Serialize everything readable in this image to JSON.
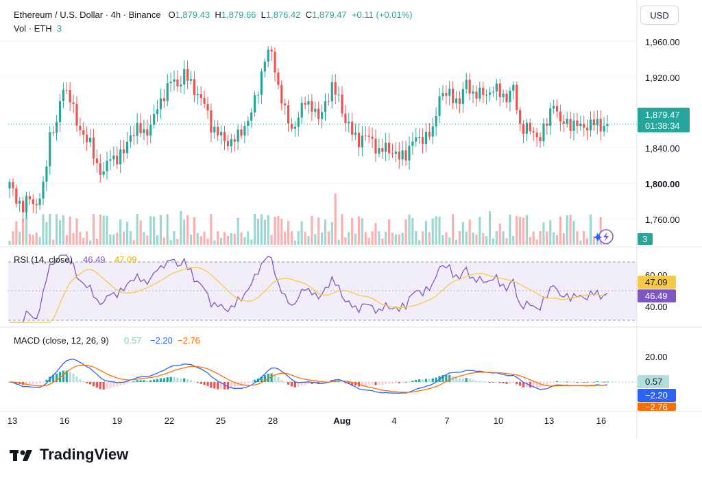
{
  "header": {
    "symbol": "Ethereum / U.S. Dollar · 4h · Binance",
    "o_label": "O",
    "o": "1,879.43",
    "h_label": "H",
    "h": "1,879.66",
    "l_label": "L",
    "l": "1,876.42",
    "c_label": "C",
    "c": "1,879.47",
    "change": "+0.11 (+0.01%)",
    "vol_label": "Vol · ETH",
    "vol_value": "3"
  },
  "currency_button": "USD",
  "colors": {
    "up": "#26a69a",
    "down": "#ef5350",
    "rsi": "#7e57c2",
    "rsi_ma": "#f7c948",
    "macd": "#2962ff",
    "signal": "#ff6d00",
    "grid": "#f0f3fa"
  },
  "brand": {
    "name": "TradingView"
  },
  "chart_data": [
    {
      "type": "candlestick",
      "title": "Ethereum / U.S. Dollar · 4h · Binance",
      "price_axis": {
        "ticks": [
          "1,960.00",
          "1,920.00",
          "1,840.00",
          "1,800.00",
          "1,760.00"
        ],
        "ylim": [
          1745,
          1985
        ]
      },
      "x_ticks": [
        "13",
        "16",
        "19",
        "22",
        "25",
        "28",
        "Aug",
        "4",
        "7",
        "10",
        "13",
        "16"
      ],
      "last_price": "1,879.47",
      "countdown": "01:38:34",
      "volume_label": "3",
      "path_keypoints": [
        [
          0,
          1805
        ],
        [
          2,
          1790
        ],
        [
          4,
          1775
        ],
        [
          6,
          1790
        ],
        [
          8,
          1780
        ],
        [
          10,
          1800
        ],
        [
          12,
          1870
        ],
        [
          14,
          1880
        ],
        [
          16,
          1930
        ],
        [
          18,
          1915
        ],
        [
          20,
          1880
        ],
        [
          22,
          1870
        ],
        [
          24,
          1855
        ],
        [
          26,
          1830
        ],
        [
          28,
          1820
        ],
        [
          30,
          1840
        ],
        [
          32,
          1840
        ],
        [
          34,
          1845
        ],
        [
          36,
          1870
        ],
        [
          38,
          1875
        ],
        [
          40,
          1870
        ],
        [
          42,
          1880
        ],
        [
          44,
          1900
        ],
        [
          46,
          1920
        ],
        [
          48,
          1935
        ],
        [
          50,
          1930
        ],
        [
          52,
          1945
        ],
        [
          54,
          1930
        ],
        [
          56,
          1920
        ],
        [
          58,
          1905
        ],
        [
          60,
          1880
        ],
        [
          62,
          1870
        ],
        [
          64,
          1860
        ],
        [
          66,
          1860
        ],
        [
          68,
          1865
        ],
        [
          70,
          1880
        ],
        [
          72,
          1895
        ],
        [
          74,
          1925
        ],
        [
          76,
          1965
        ],
        [
          78,
          1970
        ],
        [
          80,
          1930
        ],
        [
          82,
          1895
        ],
        [
          84,
          1875
        ],
        [
          86,
          1890
        ],
        [
          88,
          1910
        ],
        [
          90,
          1905
        ],
        [
          92,
          1885
        ],
        [
          94,
          1910
        ],
        [
          96,
          1925
        ],
        [
          98,
          1915
        ],
        [
          100,
          1885
        ],
        [
          102,
          1870
        ],
        [
          104,
          1862
        ],
        [
          106,
          1865
        ],
        [
          108,
          1862
        ],
        [
          110,
          1845
        ],
        [
          112,
          1852
        ],
        [
          114,
          1848
        ],
        [
          116,
          1838
        ],
        [
          118,
          1845
        ],
        [
          120,
          1860
        ],
        [
          122,
          1862
        ],
        [
          124,
          1868
        ],
        [
          126,
          1870
        ],
        [
          128,
          1920
        ],
        [
          130,
          1918
        ],
        [
          132,
          1915
        ],
        [
          134,
          1910
        ],
        [
          136,
          1932
        ],
        [
          138,
          1920
        ],
        [
          140,
          1918
        ],
        [
          142,
          1920
        ],
        [
          144,
          1925
        ],
        [
          146,
          1920
        ],
        [
          148,
          1915
        ],
        [
          150,
          1925
        ],
        [
          152,
          1880
        ],
        [
          154,
          1875
        ],
        [
          156,
          1870
        ],
        [
          158,
          1865
        ],
        [
          160,
          1882
        ],
        [
          162,
          1912
        ],
        [
          164,
          1880
        ],
        [
          166,
          1885
        ],
        [
          168,
          1880
        ],
        [
          170,
          1878
        ],
        [
          172,
          1880
        ],
        [
          174,
          1882
        ],
        [
          176,
          1880
        ],
        [
          178,
          1879
        ]
      ]
    },
    {
      "type": "line",
      "title": "RSI (14, close)",
      "series": [
        {
          "name": "RSI",
          "last": "46.49"
        },
        {
          "name": "RSI MA",
          "last": "47.09"
        }
      ],
      "y_ticks": [
        "60.00",
        "40.00"
      ],
      "bands": [
        70,
        30
      ],
      "ylim": [
        25,
        75
      ]
    },
    {
      "type": "line",
      "title": "MACD (close, 12, 26, 9)",
      "series": [
        {
          "name": "Histogram",
          "last": "0.57"
        },
        {
          "name": "MACD",
          "last": "−2.20"
        },
        {
          "name": "Signal",
          "last": "−2.76"
        }
      ],
      "y_ticks": [
        "20.00"
      ],
      "ylim": [
        -12,
        33
      ]
    }
  ]
}
